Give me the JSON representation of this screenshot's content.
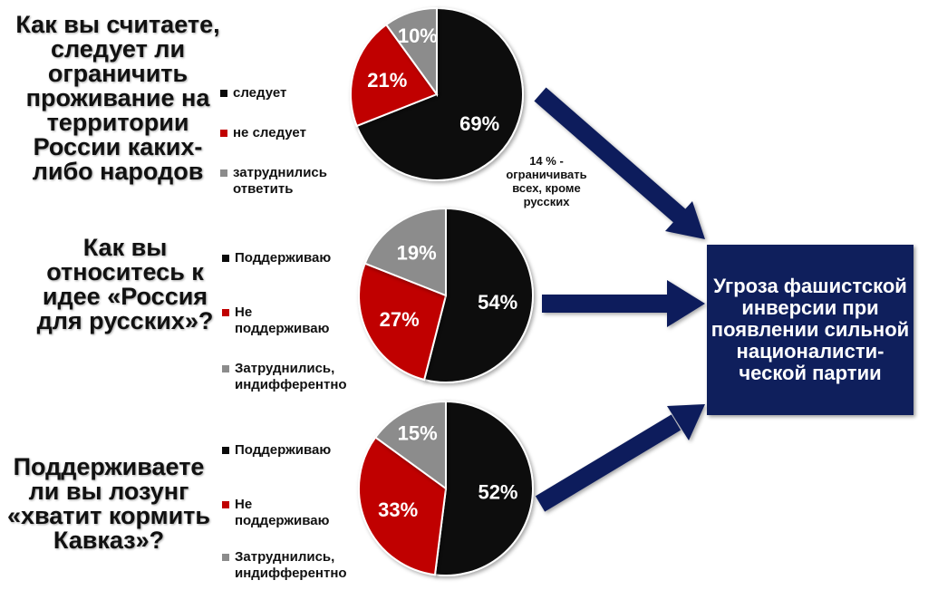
{
  "colors": {
    "black": "#0b0b0b",
    "red": "#c00000",
    "gray": "#8c8c8c",
    "navy": "#0f1f5c"
  },
  "chart_data": [
    {
      "type": "pie",
      "question": "Как вы считаете, следует ли ограничить проживание на территории России каких-либо народов",
      "slices": [
        {
          "label": "следует",
          "value": 69,
          "text": "69%",
          "color": "#0b0b0b"
        },
        {
          "label": "не следует",
          "value": 21,
          "text": "21%",
          "color": "#c00000"
        },
        {
          "label": "затруднились ответить",
          "value": 10,
          "text": "10%",
          "color": "#8c8c8c"
        }
      ],
      "annotation": "14 % - ограничивать всех, кроме русских"
    },
    {
      "type": "pie",
      "question": "Как вы относитесь к идее «Россия для русских»?",
      "slices": [
        {
          "label": "Поддерживаю",
          "value": 54,
          "text": "54%",
          "color": "#0b0b0b"
        },
        {
          "label": "Не поддерживаю",
          "value": 27,
          "text": "27%",
          "color": "#c00000"
        },
        {
          "label": "Затруднились, индифферентно",
          "value": 19,
          "text": "19%",
          "color": "#8c8c8c"
        }
      ]
    },
    {
      "type": "pie",
      "question": "Поддерживаете ли вы лозунг «хватит кормить Кавказ»?",
      "slices": [
        {
          "label": "Поддерживаю",
          "value": 52,
          "text": "52%",
          "color": "#0b0b0b"
        },
        {
          "label": "Не поддерживаю",
          "value": 33,
          "text": "33%",
          "color": "#c00000"
        },
        {
          "label": "Затруднились, индифферентно",
          "value": 15,
          "text": "15%",
          "color": "#8c8c8c"
        }
      ]
    }
  ],
  "conclusion": "Угроза фашистской инверсии при появлении сильной националисти-ческой партии"
}
